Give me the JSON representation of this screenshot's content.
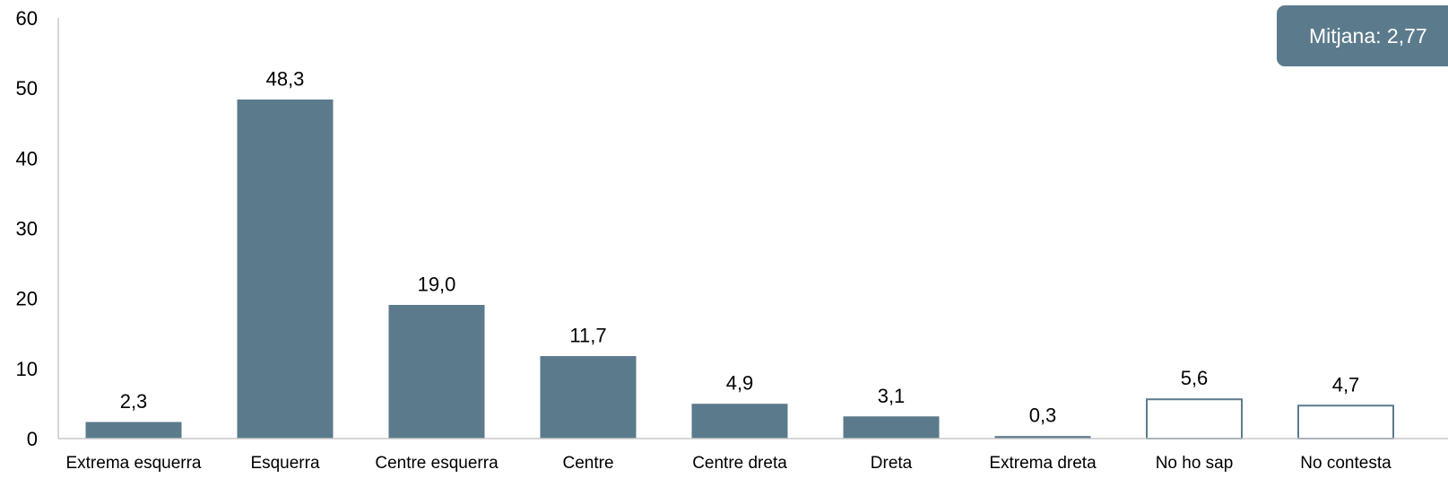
{
  "chart_data": {
    "type": "bar",
    "title": "",
    "xlabel": "",
    "ylabel": "",
    "ylim": [
      0,
      60
    ],
    "yticks": [
      0,
      10,
      20,
      30,
      40,
      50,
      60
    ],
    "grid": false,
    "legend": "none",
    "categories": [
      "Extrema esquerra",
      "Esquerra",
      "Centre esquerra",
      "Centre",
      "Centre dreta",
      "Dreta",
      "Extrema dreta",
      "No ho sap",
      "No contesta"
    ],
    "values": [
      2.3,
      48.3,
      19.0,
      11.7,
      4.9,
      3.1,
      0.3,
      5.6,
      4.7
    ],
    "value_labels": [
      "2,3",
      "48,3",
      "19,0",
      "11,7",
      "4,9",
      "3,1",
      "0,3",
      "5,6",
      "4,7"
    ],
    "bar_style": [
      "filled",
      "filled",
      "filled",
      "filled",
      "filled",
      "filled",
      "filled",
      "outline",
      "outline"
    ],
    "annotation": "Mitjana: 2,77"
  },
  "colors": {
    "bar_fill": "#5b7b8c",
    "bar_outline": "#5b7b8c",
    "axis": "#c8c8c8",
    "annotation_bg": "#5b7b8c",
    "annotation_text": "#ffffff"
  }
}
